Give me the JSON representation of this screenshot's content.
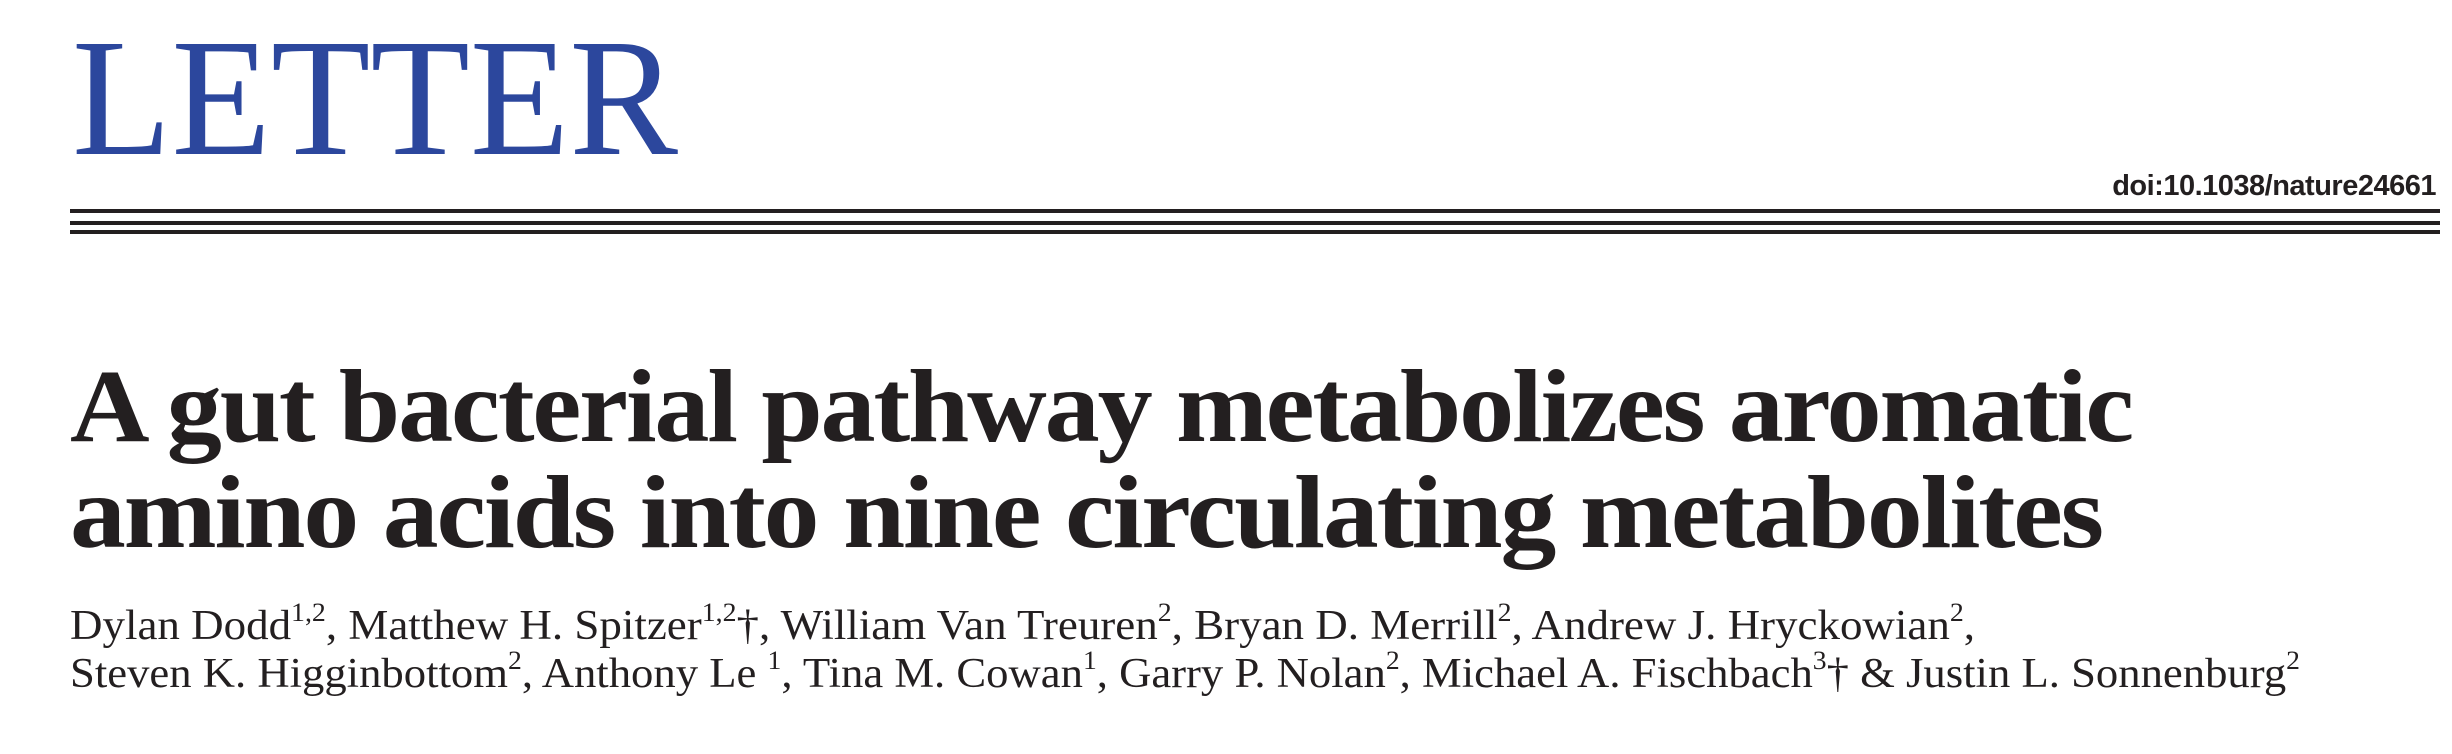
{
  "header": {
    "section_label": "LETTER",
    "doi": "doi:10.1038/nature24661",
    "accent_color": "#2c479d"
  },
  "article": {
    "title_lines": [
      "A gut bacterial pathway metabolizes aromatic",
      "amino acids into nine circulating metabolites"
    ],
    "author_lines": [
      [
        {
          "name": "Dylan Dodd",
          "aff": "1,2",
          "sep": ", "
        },
        {
          "name": "Matthew H. Spitzer",
          "aff": "1,2",
          "mark": "†",
          "sep": ", "
        },
        {
          "name": "William Van Treuren",
          "aff": "2",
          "sep": ", "
        },
        {
          "name": "Bryan D. Merrill",
          "aff": "2",
          "sep": ", "
        },
        {
          "name": "Andrew J. Hryckowian",
          "aff": "2",
          "sep": ","
        }
      ],
      [
        {
          "name": "Steven K. Higginbottom",
          "aff": "2",
          "sep": ", "
        },
        {
          "name": "Anthony Le ",
          "aff": "1",
          "sep": ", "
        },
        {
          "name": "Tina M. Cowan",
          "aff": "1",
          "sep": ", "
        },
        {
          "name": "Garry P. Nolan",
          "aff": "2",
          "sep": ", "
        },
        {
          "name": "Michael A. Fischbach",
          "aff": "3",
          "mark": "†",
          "sep": " & "
        },
        {
          "name": "Justin L. Sonnenburg",
          "aff": "2",
          "sep": ""
        }
      ]
    ]
  }
}
